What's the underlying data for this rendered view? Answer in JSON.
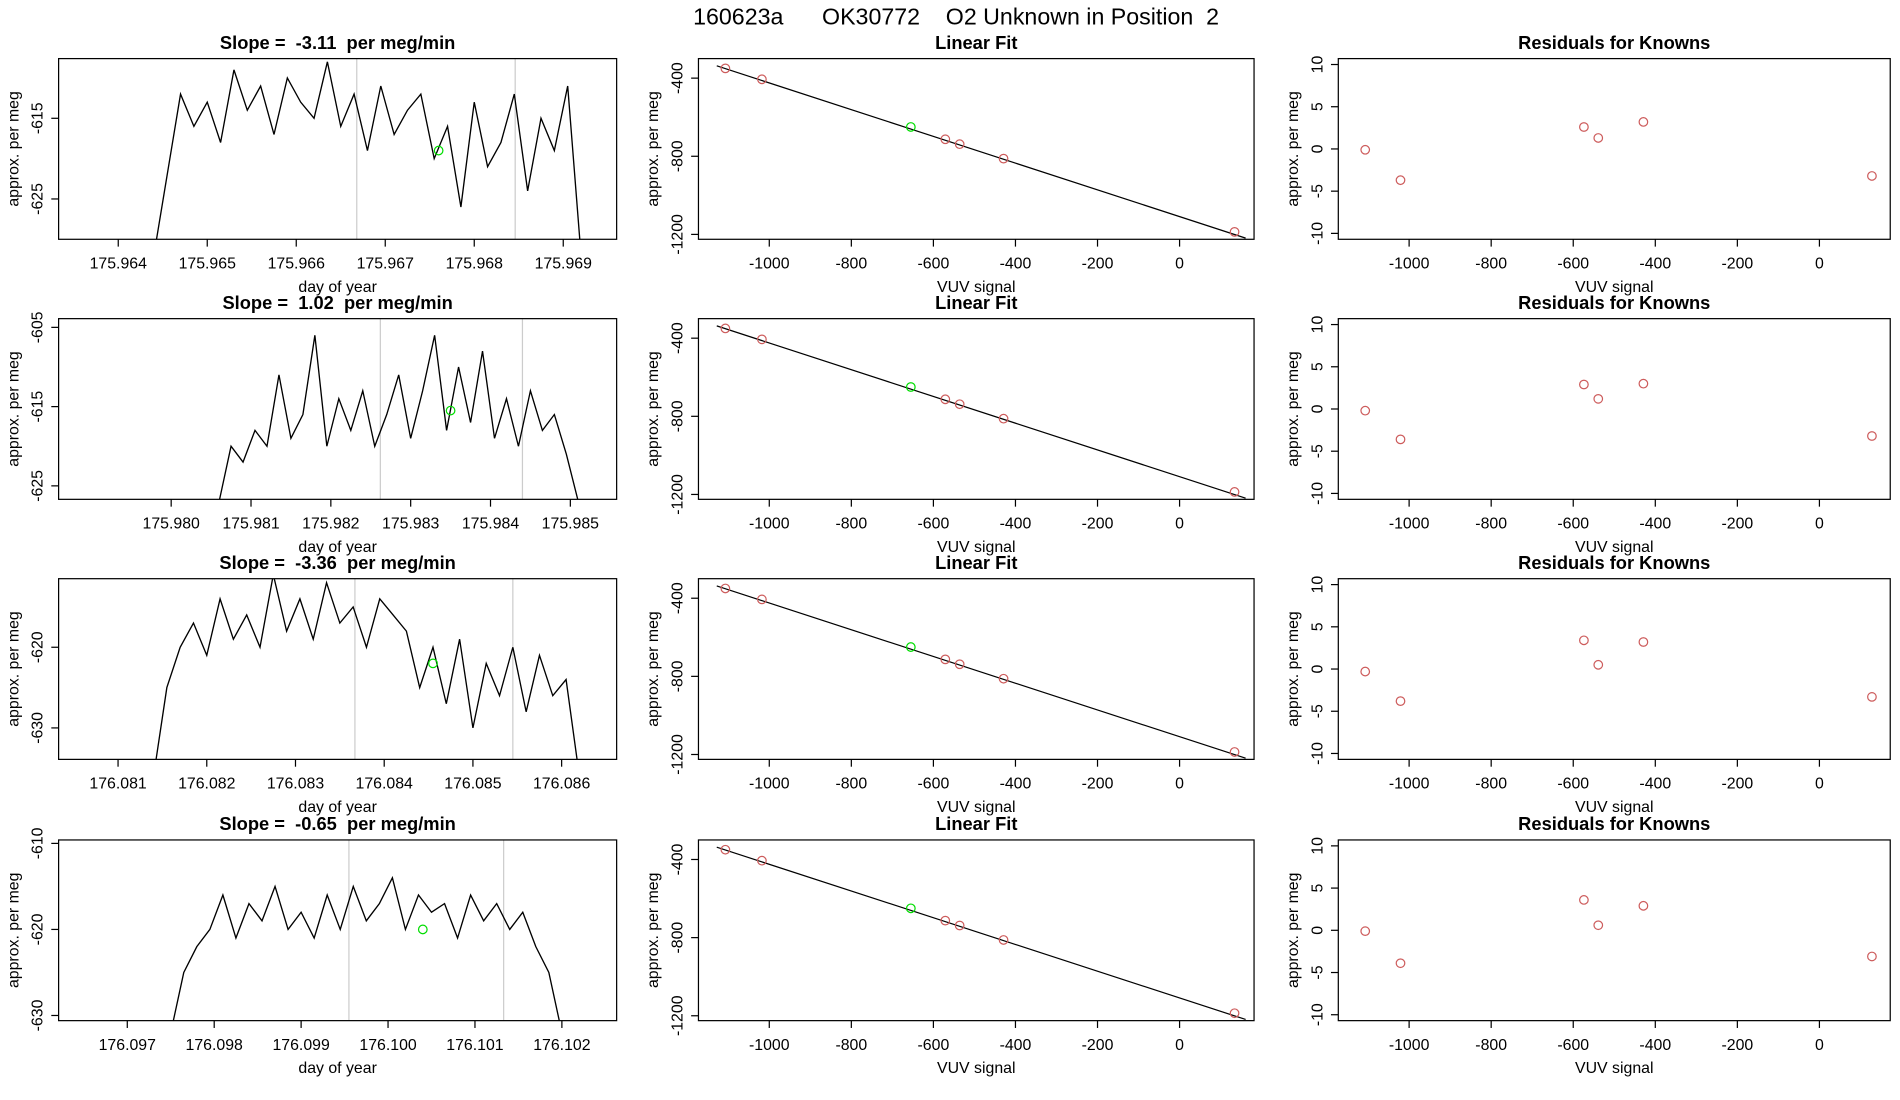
{
  "title": "160623a      OK30772    O2 Unknown in Position  2",
  "chart_data": [
    {
      "type": "line",
      "title": "Slope =  -3.11  per meg/min",
      "xlabel": "day of year",
      "ylabel": "approx. per meg",
      "xlim": [
        175.96333,
        175.9696
      ],
      "ylim": [
        -630,
        -607.6
      ],
      "xticks": [
        175.964,
        175.965,
        175.966,
        175.967,
        175.968,
        175.969
      ],
      "yticks": [
        -625,
        -615
      ],
      "color": "#000000",
      "x": [
        175.9644,
        175.96455,
        175.9647,
        175.96485,
        175.965,
        175.96515,
        175.9653,
        175.96545,
        175.9656,
        175.96575,
        175.9659,
        175.96605,
        175.9662,
        175.96635,
        175.9665,
        175.96665,
        175.9668,
        175.96695,
        175.9671,
        175.96725,
        175.9674,
        175.96755,
        175.9677,
        175.96785,
        175.968,
        175.96815,
        175.9683,
        175.96845,
        175.9686,
        175.96875,
        175.9689,
        175.96905,
        175.9692
      ],
      "values": [
        -632,
        -622,
        -612,
        -616,
        -613,
        -618,
        -609,
        -614,
        -611,
        -617,
        -610,
        -613,
        -615,
        -608,
        -616,
        -612,
        -619,
        -611,
        -617,
        -614,
        -612,
        -620,
        -616,
        -626,
        -613,
        -621,
        -618,
        -612,
        -624,
        -615,
        -619,
        -611,
        -632
      ],
      "vlines": [
        175.96668,
        175.96846
      ],
      "vline_color": "#cccccc",
      "marker": {
        "x": 175.9676,
        "y": -619,
        "color": "#00dd00"
      }
    },
    {
      "type": "scatter",
      "title": "Linear Fit",
      "xlabel": "VUV signal",
      "ylabel": "approx. per meg",
      "xlim": [
        -1172.6,
        181.5
      ],
      "ylim": [
        -1225,
        -300
      ],
      "xticks": [
        -1000,
        -800,
        -600,
        -400,
        -200,
        0
      ],
      "yticks": [
        -1200,
        -800,
        -400
      ],
      "x": [
        -1107,
        -1018,
        -655,
        -571,
        -536,
        -429,
        134
      ],
      "values": [
        -350,
        -406,
        -650,
        -713,
        -738,
        -812,
        -1187
      ],
      "point_colors": [
        "#cd5c5c",
        "#cd5c5c",
        "#00dd00",
        "#cd5c5c",
        "#cd5c5c",
        "#cd5c5c",
        "#cd5c5c"
      ],
      "fit_x": [
        -1128,
        161
      ],
      "fit_y": [
        -337,
        -1219
      ],
      "fit_color": "#000000"
    },
    {
      "type": "scatter",
      "title": "Residuals for Knowns",
      "xlabel": "VUV signal",
      "ylabel": "approx. per meg",
      "xlim": [
        -1172.6,
        172.6
      ],
      "ylim": [
        -10.7,
        10.7
      ],
      "xticks": [
        -1000,
        -800,
        -600,
        -400,
        -200,
        0
      ],
      "yticks": [
        -10,
        -5,
        0,
        5,
        10
      ],
      "x": [
        -1107,
        -1021,
        -574,
        -539,
        -429,
        128
      ],
      "values": [
        -0.1,
        -3.7,
        2.6,
        1.3,
        3.2,
        -3.2
      ],
      "color": "#cd5c5c"
    },
    {
      "type": "line",
      "title": "Slope =  1.02  per meg/min",
      "xlabel": "day of year",
      "ylabel": "approx. per meg",
      "xlim": [
        175.97859,
        175.98558
      ],
      "ylim": [
        -626.7,
        -603.9
      ],
      "xticks": [
        {
          "value": 175.98,
          "label": "175.980"
        },
        175.981,
        175.982,
        175.983,
        175.984,
        175.985
      ],
      "yticks": [
        -625,
        -615,
        -605
      ],
      "color": "#000000",
      "x": [
        175.9806,
        175.98075,
        175.9809,
        175.98105,
        175.9812,
        175.98135,
        175.9815,
        175.98165,
        175.9818,
        175.98195,
        175.9821,
        175.98225,
        175.9824,
        175.98255,
        175.9827,
        175.98285,
        175.983,
        175.98315,
        175.9833,
        175.98345,
        175.9836,
        175.98375,
        175.9839,
        175.98405,
        175.9842,
        175.98435,
        175.9845,
        175.98465,
        175.9848,
        175.98495,
        175.9851
      ],
      "values": [
        -627,
        -620,
        -622,
        -618,
        -620,
        -611,
        -619,
        -616,
        -606,
        -620,
        -614,
        -618,
        -613,
        -620,
        -616,
        -611,
        -619,
        -613,
        -606,
        -618,
        -610,
        -617,
        -608,
        -619,
        -614,
        -620,
        -613,
        -618,
        -616,
        -621,
        -627
      ],
      "vlines": [
        175.98262,
        175.9844
      ],
      "vline_color": "#cccccc",
      "marker": {
        "x": 175.9835,
        "y": -615.5,
        "color": "#00dd00"
      }
    },
    {
      "type": "scatter",
      "title": "Linear Fit",
      "xlabel": "VUV signal",
      "ylabel": "approx. per meg",
      "xlim": [
        -1172.6,
        181.5
      ],
      "ylim": [
        -1225,
        -300
      ],
      "xticks": [
        -1000,
        -800,
        -600,
        -400,
        -200,
        0
      ],
      "yticks": [
        -1200,
        -800,
        -400
      ],
      "x": [
        -1107,
        -1018,
        -655,
        -571,
        -536,
        -429,
        134
      ],
      "values": [
        -350,
        -406,
        -650,
        -713,
        -738,
        -812,
        -1187
      ],
      "point_colors": [
        "#cd5c5c",
        "#cd5c5c",
        "#00dd00",
        "#cd5c5c",
        "#cd5c5c",
        "#cd5c5c",
        "#cd5c5c"
      ],
      "fit_x": [
        -1128,
        161
      ],
      "fit_y": [
        -337,
        -1219
      ],
      "fit_color": "#000000"
    },
    {
      "type": "scatter",
      "title": "Residuals for Knowns",
      "xlabel": "VUV signal",
      "ylabel": "approx. per meg",
      "xlim": [
        -1172.6,
        172.6
      ],
      "ylim": [
        -10.7,
        10.7
      ],
      "xticks": [
        -1000,
        -800,
        -600,
        -400,
        -200,
        0
      ],
      "yticks": [
        -10,
        -5,
        0,
        5,
        10
      ],
      "x": [
        -1107,
        -1021,
        -574,
        -539,
        -429,
        128
      ],
      "values": [
        -0.2,
        -3.6,
        2.9,
        1.2,
        3,
        -3.2
      ],
      "color": "#cd5c5c"
    },
    {
      "type": "line",
      "title": "Slope =  -3.36  per meg/min",
      "xlabel": "day of year",
      "ylabel": "approx. per meg",
      "xlim": [
        176.08033,
        176.08662
      ],
      "ylim": [
        -633.9,
        -611.5
      ],
      "xticks": [
        176.081,
        176.082,
        176.083,
        176.084,
        176.085,
        176.086
      ],
      "yticks": [
        -630,
        -620
      ],
      "color": "#000000",
      "x": [
        176.0814,
        176.08155,
        176.0817,
        176.08185,
        176.082,
        176.08215,
        176.0823,
        176.08245,
        176.0826,
        176.08275,
        176.0829,
        176.08305,
        176.0832,
        176.08335,
        176.0835,
        176.08365,
        176.0838,
        176.08395,
        176.0841,
        176.08425,
        176.0844,
        176.08455,
        176.0847,
        176.08485,
        176.085,
        176.08515,
        176.0853,
        176.08545,
        176.0856,
        176.08575,
        176.0859,
        176.08605,
        176.0862
      ],
      "values": [
        -636,
        -625,
        -620,
        -617,
        -621,
        -614,
        -619,
        -616,
        -620,
        -611,
        -618,
        -614,
        -619,
        -612,
        -617,
        -615,
        -620,
        -614,
        -616,
        -618,
        -625,
        -620,
        -627,
        -619,
        -630,
        -622,
        -626,
        -620,
        -628,
        -621,
        -626,
        -624,
        -636
      ],
      "vlines": [
        176.08367,
        176.08545
      ],
      "vline_color": "#cccccc",
      "marker": {
        "x": 176.08455,
        "y": -622,
        "color": "#00dd00"
      }
    },
    {
      "type": "scatter",
      "title": "Linear Fit",
      "xlabel": "VUV signal",
      "ylabel": "approx. per meg",
      "xlim": [
        -1172.6,
        181.5
      ],
      "ylim": [
        -1225,
        -300
      ],
      "xticks": [
        -1000,
        -800,
        -600,
        -400,
        -200,
        0
      ],
      "yticks": [
        -1200,
        -800,
        -400
      ],
      "x": [
        -1107,
        -1018,
        -655,
        -571,
        -536,
        -429,
        134
      ],
      "values": [
        -350,
        -406,
        -650,
        -713,
        -738,
        -812,
        -1187
      ],
      "point_colors": [
        "#cd5c5c",
        "#cd5c5c",
        "#00dd00",
        "#cd5c5c",
        "#cd5c5c",
        "#cd5c5c",
        "#cd5c5c"
      ],
      "fit_x": [
        -1128,
        161
      ],
      "fit_y": [
        -337,
        -1219
      ],
      "fit_color": "#000000"
    },
    {
      "type": "scatter",
      "title": "Residuals for Knowns",
      "xlabel": "VUV signal",
      "ylabel": "approx. per meg",
      "xlim": [
        -1172.6,
        172.6
      ],
      "ylim": [
        -10.7,
        10.7
      ],
      "xticks": [
        -1000,
        -800,
        -600,
        -400,
        -200,
        0
      ],
      "yticks": [
        -10,
        -5,
        0,
        5,
        10
      ],
      "x": [
        -1107,
        -1021,
        -574,
        -539,
        -429,
        128
      ],
      "values": [
        -0.3,
        -3.8,
        3.4,
        0.5,
        3.2,
        -3.3
      ],
      "color": "#cd5c5c"
    },
    {
      "type": "line",
      "title": "Slope =  -0.65  per meg/min",
      "xlabel": "day of year",
      "ylabel": "approx. per meg",
      "xlim": [
        176.09621,
        176.10263
      ],
      "ylim": [
        -630.6,
        -609.6
      ],
      "xticks": [
        176.097,
        176.098,
        176.099,
        {
          "value": 176.1,
          "label": "176.100"
        },
        176.101,
        176.102
      ],
      "yticks": [
        -630,
        -620,
        -610
      ],
      "color": "#000000",
      "x": [
        176.0975,
        176.09765,
        176.0978,
        176.09795,
        176.0981,
        176.09825,
        176.0984,
        176.09855,
        176.0987,
        176.09885,
        176.099,
        176.09915,
        176.0993,
        176.09945,
        176.0996,
        176.09975,
        176.0999,
        176.10005,
        176.1002,
        176.10035,
        176.1005,
        176.10065,
        176.1008,
        176.10095,
        176.1011,
        176.10125,
        176.1014,
        176.10155,
        176.1017,
        176.10185,
        176.102
      ],
      "values": [
        -632,
        -625,
        -622,
        -620,
        -616,
        -621,
        -617,
        -619,
        -615,
        -620,
        -618,
        -621,
        -616,
        -620,
        -615,
        -619,
        -617,
        -614,
        -620,
        -616,
        -618,
        -617,
        -621,
        -616,
        -619,
        -617,
        -620,
        -618,
        -622,
        -625,
        -632
      ],
      "vlines": [
        176.09955,
        176.10133
      ],
      "vline_color": "#cccccc",
      "marker": {
        "x": 176.1004,
        "y": -620,
        "color": "#00dd00"
      }
    },
    {
      "type": "scatter",
      "title": "Linear Fit",
      "xlabel": "VUV signal",
      "ylabel": "approx. per meg",
      "xlim": [
        -1172.6,
        181.5
      ],
      "ylim": [
        -1225,
        -300
      ],
      "xticks": [
        -1000,
        -800,
        -600,
        -400,
        -200,
        0
      ],
      "yticks": [
        -1200,
        -800,
        -400
      ],
      "x": [
        -1107,
        -1018,
        -655,
        -571,
        -536,
        -429,
        134
      ],
      "values": [
        -350,
        -406,
        -650,
        -713,
        -738,
        -812,
        -1187
      ],
      "point_colors": [
        "#cd5c5c",
        "#cd5c5c",
        "#00dd00",
        "#cd5c5c",
        "#cd5c5c",
        "#cd5c5c",
        "#cd5c5c"
      ],
      "fit_x": [
        -1128,
        161
      ],
      "fit_y": [
        -337,
        -1219
      ],
      "fit_color": "#000000"
    },
    {
      "type": "scatter",
      "title": "Residuals for Knowns",
      "xlabel": "VUV signal",
      "ylabel": "approx. per meg",
      "xlim": [
        -1172.6,
        172.6
      ],
      "ylim": [
        -10.7,
        10.7
      ],
      "xticks": [
        -1000,
        -800,
        -600,
        -400,
        -200,
        0
      ],
      "yticks": [
        -10,
        -5,
        0,
        5,
        10
      ],
      "x": [
        -1107,
        -1021,
        -574,
        -539,
        -429,
        128
      ],
      "values": [
        -0.1,
        -3.9,
        3.6,
        0.6,
        2.9,
        -3.1
      ],
      "color": "#cd5c5c"
    }
  ]
}
